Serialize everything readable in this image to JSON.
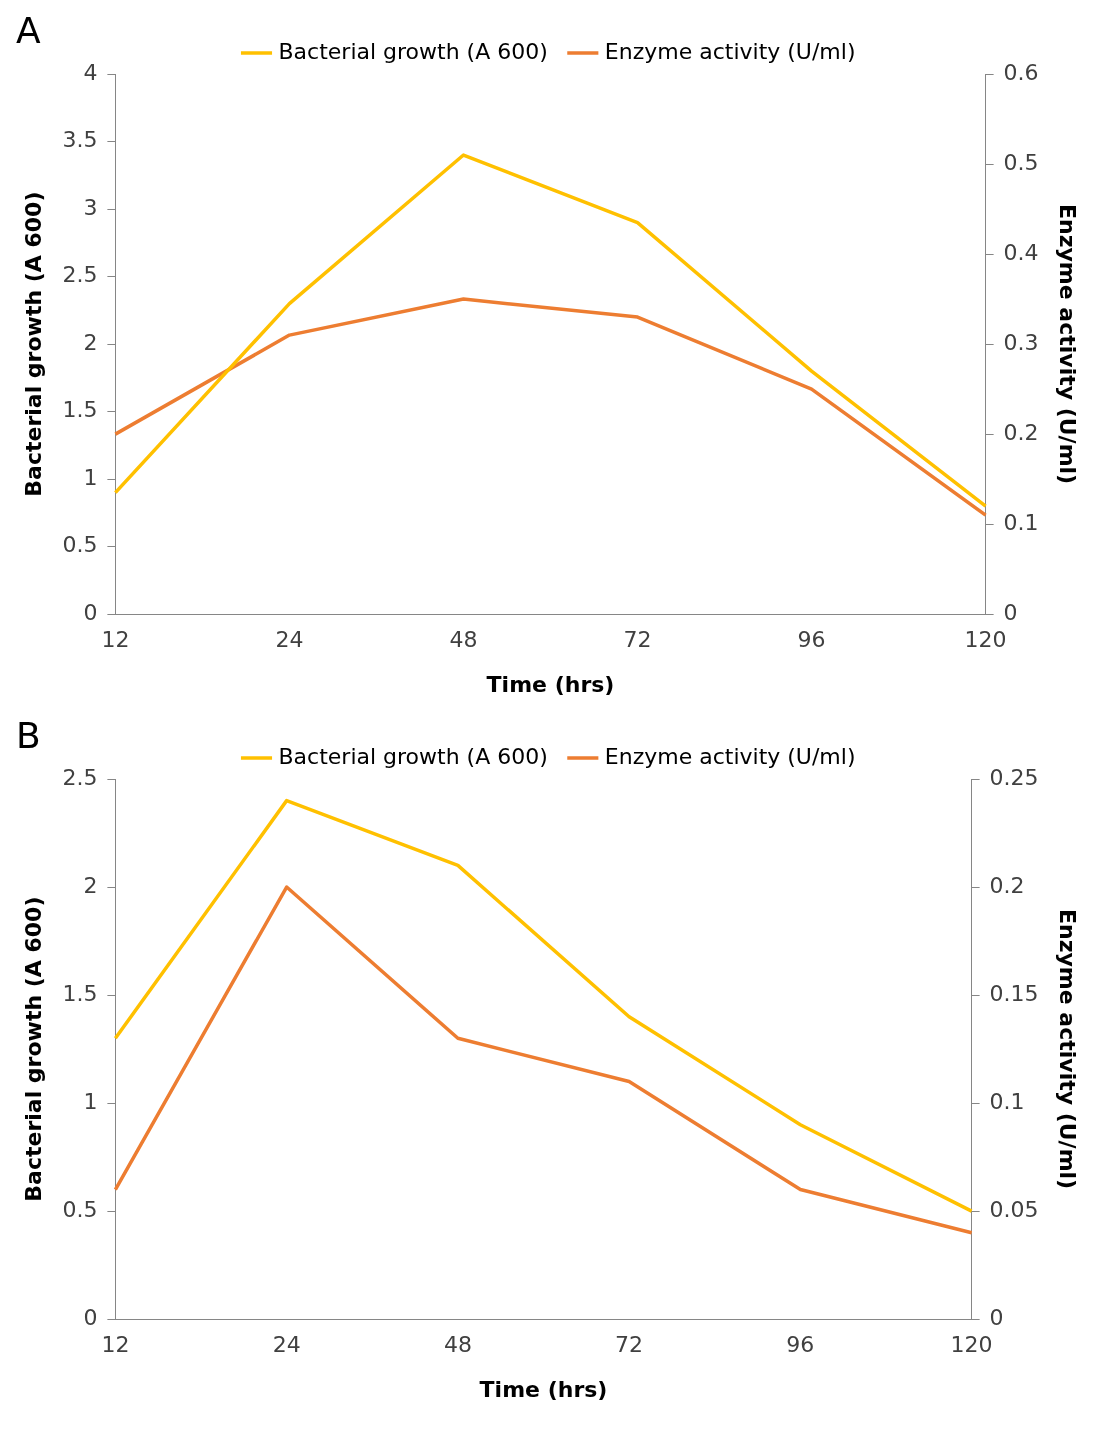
{
  "chart_data": [
    {
      "type": "line",
      "annotations": [
        "A"
      ],
      "xlabel": "Time (hrs)",
      "ylabel": "Bacterial growth (A 600)",
      "y2label": "Enzyme activity (U/ml)",
      "categories": [
        "12",
        "24",
        "48",
        "72",
        "96",
        "120"
      ],
      "series": [
        {
          "name": "Bacterial growth (A 600)",
          "color": "#ffc000",
          "values": [
            0.9,
            2.3,
            3.4,
            2.9,
            1.8,
            0.8
          ]
        },
        {
          "name": "Enzyme activity (U/ml)",
          "color": "#ed7d31",
          "axis": "y2",
          "values": [
            0.2,
            0.31,
            0.35,
            0.33,
            0.25,
            0.11
          ]
        }
      ],
      "ylim": [
        0,
        4
      ],
      "yticks": [
        0,
        0.5,
        1,
        1.5,
        2,
        2.5,
        3,
        3.5,
        4
      ],
      "y2lim": [
        0,
        0.6
      ],
      "y2ticks": [
        0,
        0.1,
        0.2,
        0.3,
        0.4,
        0.5,
        0.6
      ],
      "legend": "top",
      "marker": "none"
    },
    {
      "type": "line",
      "annotations": [
        "B"
      ],
      "xlabel": "Time (hrs)",
      "ylabel": "Bacterial growth (A 600)",
      "y2label": "Enzyme activity (U/ml)",
      "categories": [
        "12",
        "24",
        "48",
        "72",
        "96",
        "120"
      ],
      "series": [
        {
          "name": "Bacterial growth (A 600)",
          "color": "#ffc000",
          "values": [
            1.3,
            2.4,
            2.1,
            1.4,
            0.9,
            0.5
          ]
        },
        {
          "name": "Enzyme activity (U/ml)",
          "color": "#ed7d31",
          "axis": "y2",
          "values": [
            0.06,
            0.2,
            0.13,
            0.11,
            0.06,
            0.04
          ]
        }
      ],
      "ylim": [
        0,
        2.5
      ],
      "yticks": [
        0,
        0.5,
        1,
        1.5,
        2,
        2.5
      ],
      "y2lim": [
        0,
        0.25
      ],
      "y2ticks": [
        0,
        0.05,
        0.1,
        0.15,
        0.2,
        0.25
      ],
      "legend": "top",
      "marker": "none"
    }
  ]
}
